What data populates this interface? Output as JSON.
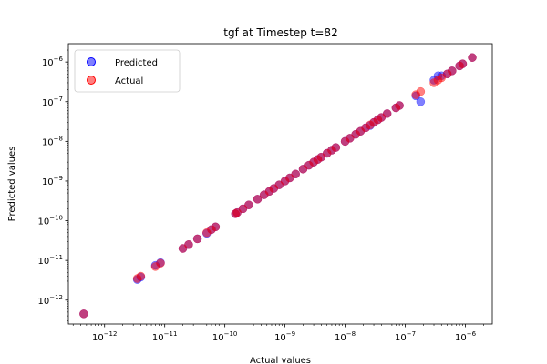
{
  "chart_data": {
    "type": "scatter",
    "title": "tgf at Timestep t=82",
    "xlabel": "Actual values",
    "ylabel": "Predicted values",
    "xscale": "log",
    "yscale": "log",
    "xlim": [
      2.5e-13,
      2.8e-06
    ],
    "ylim": [
      2.5e-13,
      2.9e-06
    ],
    "xticks": [
      {
        "value": 1e-12,
        "base": "10",
        "exp": "−12"
      },
      {
        "value": 1e-11,
        "base": "10",
        "exp": "−11"
      },
      {
        "value": 1e-10,
        "base": "10",
        "exp": "−10"
      },
      {
        "value": 1e-09,
        "base": "10",
        "exp": "−9"
      },
      {
        "value": 1e-08,
        "base": "10",
        "exp": "−8"
      },
      {
        "value": 1e-07,
        "base": "10",
        "exp": "−7"
      },
      {
        "value": 1e-06,
        "base": "10",
        "exp": "−6"
      }
    ],
    "yticks": [
      {
        "value": 1e-12,
        "base": "10",
        "exp": "−12"
      },
      {
        "value": 1e-11,
        "base": "10",
        "exp": "−11"
      },
      {
        "value": 1e-10,
        "base": "10",
        "exp": "−10"
      },
      {
        "value": 1e-09,
        "base": "10",
        "exp": "−9"
      },
      {
        "value": 1e-08,
        "base": "10",
        "exp": "−8"
      },
      {
        "value": 1e-07,
        "base": "10",
        "exp": "−7"
      },
      {
        "value": 1e-06,
        "base": "10",
        "exp": "−6"
      }
    ],
    "legend_position": "upper-left",
    "grid": false,
    "series": [
      {
        "name": "Predicted",
        "color": "#0000ff",
        "x": [
          4.5e-13,
          3.5e-12,
          4e-12,
          7e-12,
          8.5e-12,
          2e-11,
          2.5e-11,
          3.5e-11,
          5e-11,
          6e-11,
          7e-11,
          1.5e-10,
          1.6e-10,
          2e-10,
          2.5e-10,
          3.5e-10,
          4.5e-10,
          5.5e-10,
          6.5e-10,
          8e-10,
          1e-09,
          1.2e-09,
          1.5e-09,
          2e-09,
          2.5e-09,
          3e-09,
          3.5e-09,
          4e-09,
          5e-09,
          6e-09,
          7e-09,
          1e-08,
          1.2e-08,
          1.5e-08,
          1.8e-08,
          2.2e-08,
          2.6e-08,
          3e-08,
          3.5e-08,
          4e-08,
          5e-08,
          7e-08,
          8e-08,
          1.5e-07,
          1.8e-07,
          3e-07,
          3.5e-07,
          4e-07,
          5e-07,
          6e-07,
          8e-07,
          9e-07,
          1.3e-06
        ],
        "y": [
          4.5e-13,
          3.3e-12,
          3.8e-12,
          7.5e-12,
          8.8e-12,
          2e-11,
          2.5e-11,
          3.5e-11,
          4.8e-11,
          6e-11,
          7e-11,
          1.5e-10,
          1.6e-10,
          2e-10,
          2.5e-10,
          3.5e-10,
          4.5e-10,
          5.5e-10,
          6.5e-10,
          8e-10,
          1e-09,
          1.2e-09,
          1.5e-09,
          2e-09,
          2.5e-09,
          3e-09,
          3.5e-09,
          4e-09,
          5e-09,
          6e-09,
          7e-09,
          1e-08,
          1.2e-08,
          1.5e-08,
          1.8e-08,
          2.2e-08,
          2.5e-08,
          3e-08,
          3.5e-08,
          4e-08,
          5e-08,
          7e-08,
          8e-08,
          1.4e-07,
          1e-07,
          3.5e-07,
          4.5e-07,
          4.5e-07,
          5e-07,
          6e-07,
          8e-07,
          9e-07,
          1.3e-06
        ]
      },
      {
        "name": "Actual",
        "color": "#ff0000",
        "x": [
          4.5e-13,
          3.5e-12,
          4e-12,
          7e-12,
          8.5e-12,
          2e-11,
          2.5e-11,
          3.5e-11,
          5e-11,
          6e-11,
          7e-11,
          1.5e-10,
          1.6e-10,
          2e-10,
          2.5e-10,
          3.5e-10,
          4.5e-10,
          5.5e-10,
          6.5e-10,
          8e-10,
          1e-09,
          1.2e-09,
          1.5e-09,
          2e-09,
          2.5e-09,
          3e-09,
          3.5e-09,
          4e-09,
          5e-09,
          6e-09,
          7e-09,
          1e-08,
          1.2e-08,
          1.5e-08,
          1.8e-08,
          2.2e-08,
          2.6e-08,
          3e-08,
          3.5e-08,
          4e-08,
          5e-08,
          7e-08,
          8e-08,
          1.5e-07,
          1.8e-07,
          3e-07,
          3.5e-07,
          4e-07,
          5e-07,
          6e-07,
          8e-07,
          9e-07,
          1.3e-06
        ],
        "y": [
          4.5e-13,
          3.5e-12,
          4e-12,
          7e-12,
          8.5e-12,
          2e-11,
          2.5e-11,
          3.5e-11,
          5e-11,
          6e-11,
          7e-11,
          1.5e-10,
          1.6e-10,
          2e-10,
          2.5e-10,
          3.5e-10,
          4.5e-10,
          5.5e-10,
          6.5e-10,
          8e-10,
          1e-09,
          1.2e-09,
          1.5e-09,
          2e-09,
          2.5e-09,
          3e-09,
          3.5e-09,
          4e-09,
          5e-09,
          6e-09,
          7e-09,
          1e-08,
          1.2e-08,
          1.5e-08,
          1.8e-08,
          2.2e-08,
          2.6e-08,
          3e-08,
          3.5e-08,
          4e-08,
          5e-08,
          7e-08,
          8e-08,
          1.5e-07,
          1.8e-07,
          3e-07,
          3.5e-07,
          4e-07,
          5e-07,
          6e-07,
          8e-07,
          9e-07,
          1.3e-06
        ]
      }
    ]
  }
}
